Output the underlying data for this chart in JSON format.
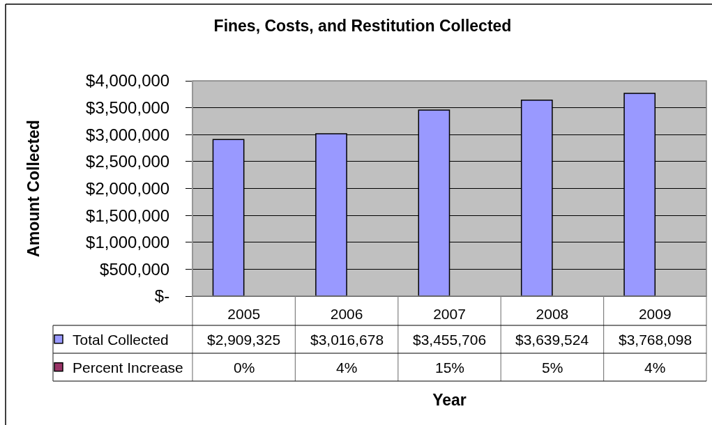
{
  "chart_data": {
    "type": "bar",
    "title": "Fines, Costs, and Restitution Collected",
    "xlabel": "Year",
    "ylabel": "Amount Collected",
    "categories": [
      "2005",
      "2006",
      "2007",
      "2008",
      "2009"
    ],
    "series": [
      {
        "name": "Total Collected",
        "color": "#9999ff",
        "values": [
          2909325,
          3016678,
          3455706,
          3639524,
          3768098
        ],
        "value_labels": [
          "$2,909,325",
          "$3,016,678",
          "$3,455,706",
          "$3,639,524",
          "$3,768,098"
        ]
      },
      {
        "name": "Percent Increase",
        "color": "#993366",
        "values": [
          null,
          null,
          null,
          null,
          null
        ],
        "value_labels": [
          "0%",
          "4%",
          "15%",
          "5%",
          "4%"
        ]
      }
    ],
    "ylim": [
      0,
      4000000
    ],
    "yticks": [
      {
        "value": 0,
        "label": "$-"
      },
      {
        "value": 500000,
        "label": "$500,000"
      },
      {
        "value": 1000000,
        "label": "$1,000,000"
      },
      {
        "value": 1500000,
        "label": "$1,500,000"
      },
      {
        "value": 2000000,
        "label": "$2,000,000"
      },
      {
        "value": 2500000,
        "label": "$2,500,000"
      },
      {
        "value": 3000000,
        "label": "$3,000,000"
      },
      {
        "value": 3500000,
        "label": "$3,500,000"
      },
      {
        "value": 4000000,
        "label": "$4,000,000"
      }
    ],
    "grid": "y",
    "legend": "bottom left"
  }
}
